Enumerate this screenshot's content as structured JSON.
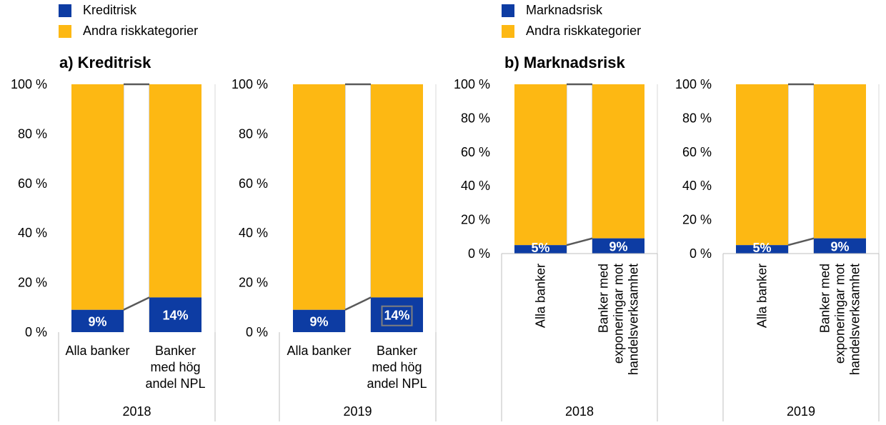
{
  "legends": [
    {
      "items": [
        {
          "label": "Kreditrisk",
          "color": "#0d3ca3"
        },
        {
          "label": "Andra riskkategorier",
          "color": "#fdb813"
        }
      ]
    },
    {
      "items": [
        {
          "label": "Marknadsrisk",
          "color": "#0d3ca3"
        },
        {
          "label": "Andra riskkategorier",
          "color": "#fdb813"
        }
      ]
    }
  ],
  "panel_titles": [
    "a) Kreditrisk",
    "b) Marknadsrisk"
  ],
  "chart_data": [
    {
      "type": "bar",
      "stacked": true,
      "panel": "a) Kreditrisk",
      "year": "2018",
      "categories": [
        "Alla banker",
        "Banker med hög andel NPL"
      ],
      "series": [
        {
          "name": "Kreditrisk",
          "values": [
            9,
            14
          ],
          "labels": [
            "9%",
            "14%"
          ],
          "color": "#0d3ca3"
        },
        {
          "name": "Andra riskkategorier",
          "values": [
            91,
            86
          ],
          "color": "#fdb813"
        }
      ],
      "ylim": [
        0,
        100
      ],
      "yticks": [
        "0 %",
        "20 %",
        "40 %",
        "60 %",
        "80 %",
        "100 %"
      ],
      "tick_lines": [
        [
          "Alla banker"
        ],
        [
          "Banker",
          "med hög",
          "andel NPL"
        ]
      ]
    },
    {
      "type": "bar",
      "stacked": true,
      "panel": "a) Kreditrisk",
      "year": "2019",
      "categories": [
        "Alla banker",
        "Banker med hög andel NPL"
      ],
      "series": [
        {
          "name": "Kreditrisk",
          "values": [
            9,
            14
          ],
          "labels": [
            "9%",
            "14%"
          ],
          "color": "#0d3ca3"
        },
        {
          "name": "Andra riskkategorier",
          "values": [
            91,
            86
          ],
          "color": "#fdb813"
        }
      ],
      "ylim": [
        0,
        100
      ],
      "yticks": [
        "0 %",
        "20 %",
        "40 %",
        "60 %",
        "80 %",
        "100 %"
      ],
      "tick_lines": [
        [
          "Alla banker"
        ],
        [
          "Banker",
          "med hög",
          "andel NPL"
        ]
      ]
    },
    {
      "type": "bar",
      "stacked": true,
      "panel": "b) Marknadsrisk",
      "year": "2018",
      "categories": [
        "Alla banker",
        "Banker med exponeringar mot handelsverksamhet"
      ],
      "series": [
        {
          "name": "Marknadsrisk",
          "values": [
            5,
            9
          ],
          "labels": [
            "5%",
            "9%"
          ],
          "color": "#0d3ca3"
        },
        {
          "name": "Andra riskkategorier",
          "values": [
            95,
            91
          ],
          "color": "#fdb813"
        }
      ],
      "ylim": [
        0,
        100
      ],
      "yticks": [
        "0 %",
        "20 %",
        "40 %",
        "60 %",
        "80 %",
        "100 %"
      ],
      "tick_lines": [
        [
          "Alla banker"
        ],
        [
          "Banker med",
          "exponeringar mot",
          "handelsverksamhet"
        ]
      ]
    },
    {
      "type": "bar",
      "stacked": true,
      "panel": "b) Marknadsrisk",
      "year": "2019",
      "categories": [
        "Alla banker",
        "Banker med exponeringar mot handelsverksamhet"
      ],
      "series": [
        {
          "name": "Marknadsrisk",
          "values": [
            5,
            9
          ],
          "labels": [
            "5%",
            "9%"
          ],
          "color": "#0d3ca3"
        },
        {
          "name": "Andra riskkategorier",
          "values": [
            95,
            91
          ],
          "color": "#fdb813"
        }
      ],
      "ylim": [
        0,
        100
      ],
      "yticks": [
        "0 %",
        "20 %",
        "40 %",
        "60 %",
        "80 %",
        "100 %"
      ],
      "tick_lines": [
        [
          "Alla banker"
        ],
        [
          "Banker med",
          "exponeringar mot",
          "handelsverksamhet"
        ]
      ]
    }
  ]
}
